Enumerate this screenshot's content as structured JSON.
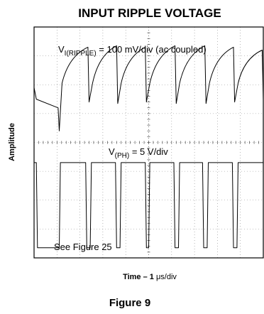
{
  "chart_data": {
    "type": "line",
    "title": "INPUT RIPPLE VOLTAGE",
    "xlabel_prefix": "Time – 1 ",
    "xlabel_unit": "μs/div",
    "ylabel": "Amplitude",
    "grid": true,
    "x_divisions": 10,
    "y_divisions": 8,
    "series": [
      {
        "name_main": "V",
        "name_sub": "I(RIPPLE)",
        "name_rest": " = 100 mV/div (ac coupled)",
        "x": [
          0.0,
          0.1,
          1.05,
          1.1,
          1.22,
          2.35,
          2.4,
          2.55,
          3.6,
          3.65,
          3.8,
          4.85,
          4.9,
          5.05,
          6.15,
          6.2,
          6.35,
          7.45,
          7.5,
          7.65,
          8.7,
          8.75,
          8.9,
          9.95,
          10.0
        ],
        "y": [
          5.9,
          5.5,
          5.2,
          4.4,
          6.05,
          7.3,
          5.4,
          6.05,
          7.35,
          5.35,
          6.05,
          7.3,
          5.4,
          6.05,
          7.35,
          5.35,
          6.05,
          7.35,
          5.35,
          6.05,
          7.3,
          5.4,
          6.05,
          7.2,
          5.5
        ]
      },
      {
        "name_main": "V",
        "name_sub": "(PH)",
        "name_rest": " = 5 V/div",
        "x": [
          0.0,
          0.1,
          0.15,
          1.1,
          1.15,
          2.25,
          2.3,
          2.45,
          2.5,
          3.55,
          3.6,
          3.75,
          3.8,
          4.85,
          4.9,
          5.0,
          5.05,
          6.1,
          6.15,
          6.3,
          6.35,
          7.35,
          7.4,
          7.55,
          7.6,
          8.65,
          8.7,
          8.85,
          8.9,
          10.0
        ],
        "y": [
          3.3,
          3.3,
          0.35,
          0.35,
          3.3,
          3.3,
          0.35,
          0.35,
          3.3,
          3.3,
          0.35,
          0.35,
          3.3,
          3.3,
          0.35,
          0.35,
          3.3,
          3.3,
          0.35,
          0.35,
          3.3,
          3.3,
          0.35,
          0.35,
          3.3,
          3.3,
          0.35,
          0.35,
          3.3,
          3.3
        ]
      }
    ],
    "annotation": "See Figure 25",
    "figure_label": "Figure 9"
  }
}
